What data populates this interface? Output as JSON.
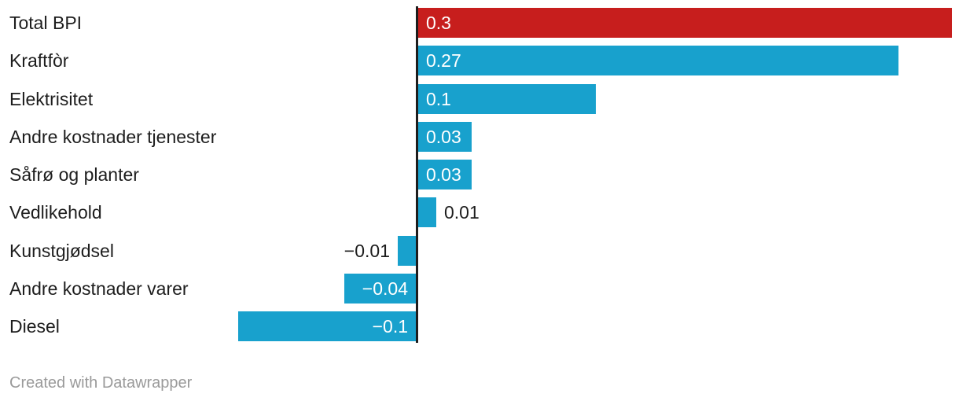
{
  "chart_data": {
    "type": "bar",
    "orientation": "horizontal",
    "title": "",
    "xlabel": "",
    "ylabel": "",
    "xlim": [
      -0.1,
      0.3
    ],
    "grid": false,
    "legend": false,
    "categories": [
      "Total BPI",
      "Kraftfòr",
      "Elektrisitet",
      "Andre kostnader tjenester",
      "Såfrø og planter",
      "Vedlikehold",
      "Kunstgjødsel",
      "Andre kostnader varer",
      "Diesel"
    ],
    "values": [
      0.3,
      0.27,
      0.1,
      0.03,
      0.03,
      0.01,
      -0.01,
      -0.04,
      -0.1
    ],
    "value_labels": [
      "0.3",
      "0.27",
      "0.1",
      "0.03",
      "0.03",
      "0.01",
      "−0.01",
      "−0.04",
      "−0.1"
    ],
    "label_inside": [
      true,
      true,
      true,
      true,
      true,
      false,
      false,
      true,
      true
    ],
    "bar_colors": [
      "#c71e1d",
      "#18a1cd",
      "#18a1cd",
      "#18a1cd",
      "#18a1cd",
      "#18a1cd",
      "#18a1cd",
      "#18a1cd",
      "#18a1cd"
    ]
  },
  "colors": {
    "highlight_red": "#c71e1d",
    "bar_blue": "#18a1cd",
    "text": "#1d1d1d",
    "baseline": "#1d1d1d",
    "muted": "#9a9a9a"
  },
  "footer": {
    "attribution": "Created with Datawrapper"
  }
}
